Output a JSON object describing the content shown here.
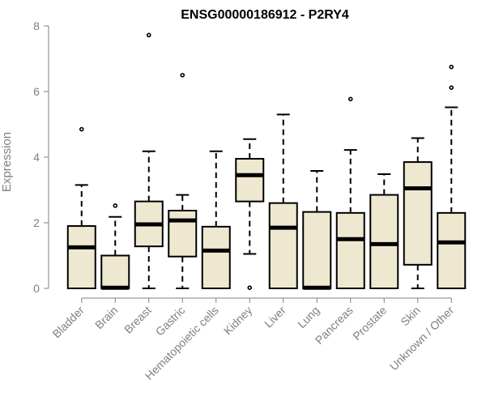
{
  "chart_data": {
    "type": "box",
    "title": "ENSG00000186912 - P2RY4",
    "xlabel": "",
    "ylabel": "Expression",
    "ylim": [
      0,
      8
    ],
    "yticks": [
      0,
      2,
      4,
      6,
      8
    ],
    "grid": false,
    "legend": "none",
    "box_fill": "#efe8d0",
    "categories": [
      "Bladder",
      "Brain",
      "Breast",
      "Gastric",
      "Hematopoietic cells",
      "Kidney",
      "Liver",
      "Lung",
      "Pancreas",
      "Prostate",
      "Skin",
      "Unknown / Other"
    ],
    "boxes": [
      {
        "min": 0,
        "q1": 0,
        "median": 1.25,
        "q3": 1.9,
        "max": 3.15,
        "outliers": [
          4.85
        ]
      },
      {
        "min": 0,
        "q1": 0,
        "median": 0.02,
        "q3": 1.0,
        "max": 2.18,
        "outliers": [
          2.52
        ]
      },
      {
        "min": 0,
        "q1": 1.28,
        "median": 1.95,
        "q3": 2.65,
        "max": 4.18,
        "outliers": [
          7.72
        ]
      },
      {
        "min": 0,
        "q1": 0.97,
        "median": 2.07,
        "q3": 2.37,
        "max": 2.85,
        "outliers": [
          6.5
        ]
      },
      {
        "min": 0,
        "q1": 0,
        "median": 1.15,
        "q3": 1.88,
        "max": 4.18,
        "outliers": []
      },
      {
        "min": 1.05,
        "q1": 2.65,
        "median": 3.45,
        "q3": 3.95,
        "max": 4.55,
        "outliers": [
          0.02
        ]
      },
      {
        "min": 0,
        "q1": 0,
        "median": 1.85,
        "q3": 2.6,
        "max": 5.3,
        "outliers": []
      },
      {
        "min": 0,
        "q1": 0,
        "median": 0.02,
        "q3": 2.33,
        "max": 3.58,
        "outliers": []
      },
      {
        "min": 0,
        "q1": 0,
        "median": 1.5,
        "q3": 2.3,
        "max": 4.22,
        "outliers": [
          5.77
        ]
      },
      {
        "min": 0,
        "q1": 0,
        "median": 1.35,
        "q3": 2.85,
        "max": 3.48,
        "outliers": []
      },
      {
        "min": 0,
        "q1": 0.72,
        "median": 3.05,
        "q3": 3.85,
        "max": 4.58,
        "outliers": []
      },
      {
        "min": 0,
        "q1": 0,
        "median": 1.4,
        "q3": 2.3,
        "max": 5.52,
        "outliers": [
          6.12,
          6.75
        ]
      }
    ]
  }
}
